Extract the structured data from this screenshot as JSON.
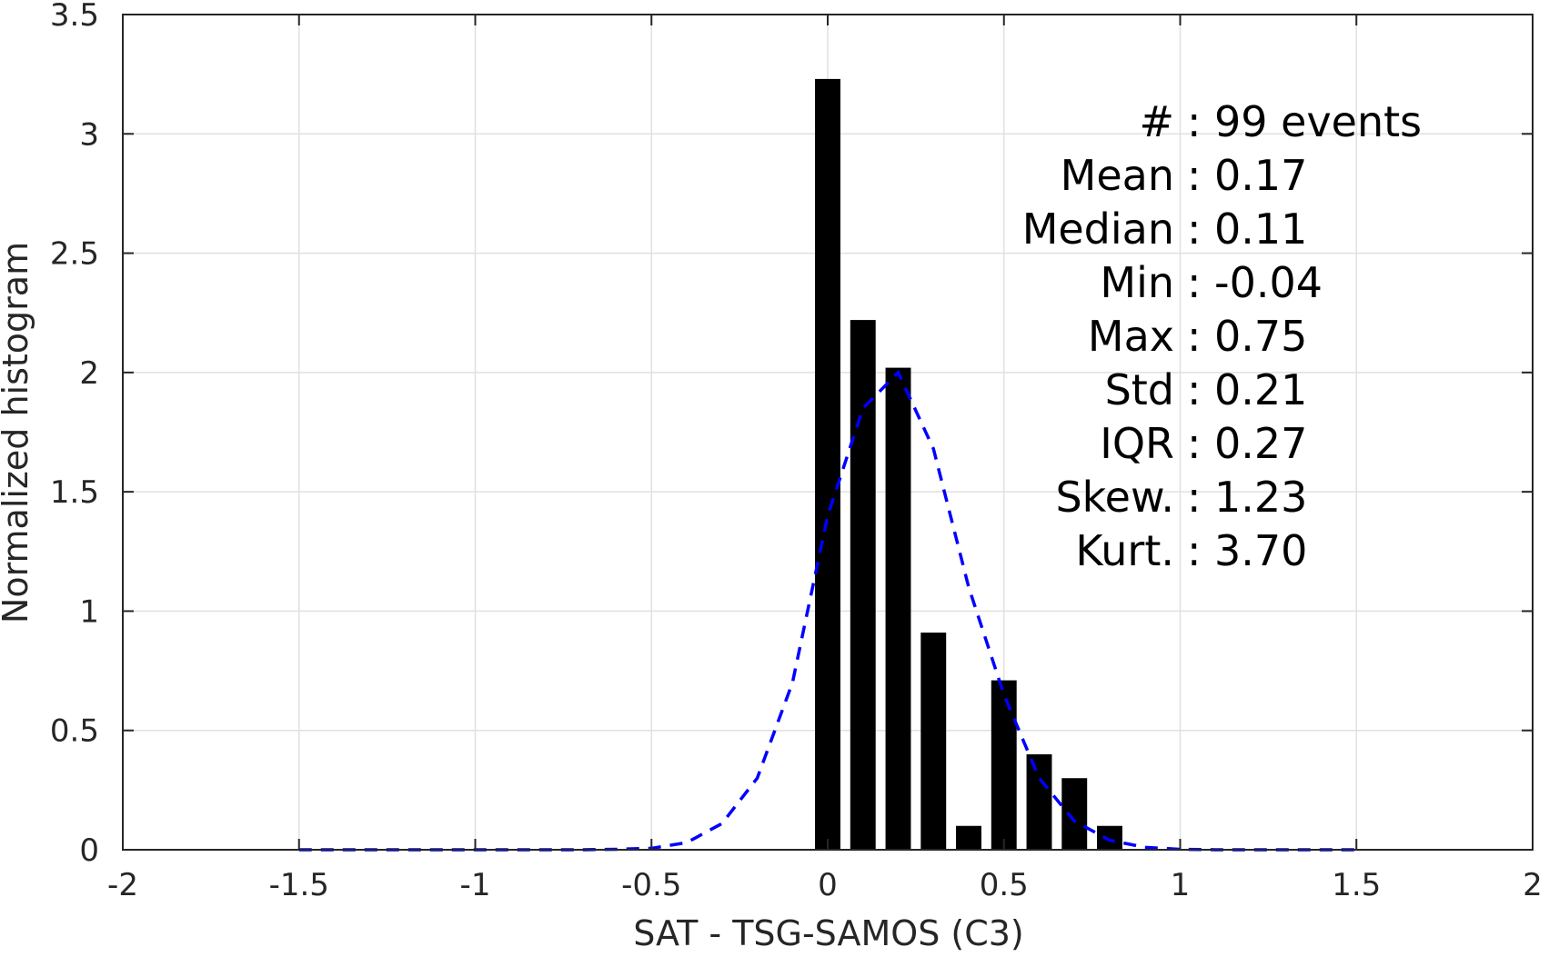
{
  "chart_data": {
    "type": "bar",
    "xlabel": "SAT - TSG-SAMOS (C3)",
    "ylabel": "Normalized histogram",
    "xlim": [
      -2,
      2
    ],
    "ylim": [
      0,
      3.5
    ],
    "grid": true,
    "x_ticks": [
      "-2",
      "-1.5",
      "-1",
      "-0.5",
      "0",
      "0.5",
      "1",
      "1.5",
      "2"
    ],
    "y_ticks": [
      "0",
      "0.5",
      "1",
      "1.5",
      "2",
      "2.5",
      "3",
      "3.5"
    ],
    "bar_color": "#000000",
    "bars": {
      "x": [
        0.0,
        0.1,
        0.2,
        0.3,
        0.4,
        0.5,
        0.6,
        0.7,
        0.8
      ],
      "values": [
        3.23,
        2.22,
        2.02,
        0.91,
        0.1,
        0.71,
        0.4,
        0.3,
        0.1
      ]
    },
    "fit_line": {
      "style": "dashed",
      "color": "#0000ff",
      "x": [
        -1.5,
        -1.4,
        -1.3,
        -1.2,
        -1.1,
        -1.0,
        -0.9,
        -0.8,
        -0.7,
        -0.6,
        -0.5,
        -0.4,
        -0.3,
        -0.2,
        -0.1,
        0.0,
        0.1,
        0.2,
        0.3,
        0.4,
        0.5,
        0.6,
        0.7,
        0.8,
        0.9,
        1.0,
        1.1,
        1.2,
        1.3,
        1.4,
        1.5
      ],
      "y": [
        0,
        0,
        0,
        0,
        0,
        0,
        0,
        0,
        0,
        0.002,
        0.006,
        0.03,
        0.11,
        0.3,
        0.7,
        1.4,
        1.85,
        2.0,
        1.68,
        1.1,
        0.65,
        0.3,
        0.12,
        0.04,
        0.01,
        0.002,
        0,
        0,
        0,
        0,
        0
      ]
    },
    "annotations": [
      {
        "label": "#",
        "sep": ":",
        "value": "99 events"
      },
      {
        "label": "Mean",
        "sep": ":",
        "value": "0.17"
      },
      {
        "label": "Median",
        "sep": ":",
        "value": "0.11"
      },
      {
        "label": "Min",
        "sep": ":",
        "value": "-0.04"
      },
      {
        "label": "Max",
        "sep": ":",
        "value": "0.75"
      },
      {
        "label": "Std",
        "sep": ":",
        "value": "0.21"
      },
      {
        "label": "IQR",
        "sep": ":",
        "value": "0.27"
      },
      {
        "label": "Skew.",
        "sep": ":",
        "value": "1.23"
      },
      {
        "label": "Kurt.",
        "sep": ":",
        "value": "3.70"
      }
    ]
  }
}
